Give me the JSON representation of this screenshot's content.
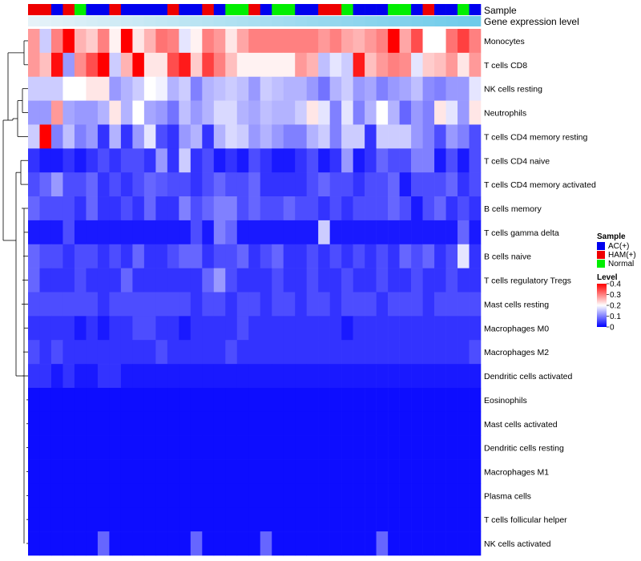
{
  "chart_data": {
    "type": "heatmap",
    "title": "",
    "annotation_labels": [
      "Sample",
      "Gene expression level"
    ],
    "gene_expression_colors": [
      "#e6f2f8",
      "#6ecbea"
    ],
    "sample_groups": [
      "AC(+)",
      "HAM(+)",
      "Normal"
    ],
    "sample_group_colors": {
      "AC(+)": "#0000ee",
      "HAM(+)": "#ee0000",
      "Normal": "#00ee00"
    },
    "samples": [
      "HAM(+)",
      "HAM(+)",
      "AC(+)",
      "HAM(+)",
      "Normal",
      "AC(+)",
      "AC(+)",
      "HAM(+)",
      "AC(+)",
      "AC(+)",
      "AC(+)",
      "AC(+)",
      "HAM(+)",
      "AC(+)",
      "AC(+)",
      "HAM(+)",
      "AC(+)",
      "Normal",
      "Normal",
      "HAM(+)",
      "AC(+)",
      "Normal",
      "Normal",
      "AC(+)",
      "AC(+)",
      "HAM(+)",
      "HAM(+)",
      "Normal",
      "AC(+)",
      "AC(+)",
      "AC(+)",
      "Normal",
      "Normal",
      "AC(+)",
      "HAM(+)",
      "AC(+)",
      "AC(+)",
      "Normal",
      "AC(+)"
    ],
    "rows": [
      "Monocytes",
      "T cells CD8",
      "NK cells resting",
      "Neutrophils",
      "T cells CD4 memory resting",
      "T cells CD4 naive",
      "T cells CD4 memory activated",
      "B cells memory",
      "T cells gamma delta",
      "B cells naive",
      "T cells regulatory  Tregs",
      "Mast cells resting",
      "Macrophages M0",
      "Macrophages M2",
      "Dendritic cells activated",
      "Eosinophils",
      "Mast cells activated",
      "Dendritic cells resting",
      "Macrophages M1",
      "Plasma cells",
      "T cells follicular helper",
      "NK cells activated"
    ],
    "legend_sample_title": "Sample",
    "legend_level_title": "Level",
    "level_ticks": [
      "0.4",
      "0.3",
      "0.2",
      "0.1",
      "0"
    ],
    "level_range": [
      0,
      0.4
    ],
    "level_colors": {
      "low": "#0000ff",
      "mid": "#ffffff",
      "high": "#ff0000"
    },
    "values": [
      [
        0.28,
        0.16,
        0.3,
        0.4,
        0.26,
        0.24,
        0.3,
        0.21,
        0.4,
        0.22,
        0.26,
        0.31,
        0.3,
        0.18,
        0.21,
        0.3,
        0.28,
        0.22,
        0.27,
        0.3,
        0.3,
        0.3,
        0.3,
        0.3,
        0.3,
        0.28,
        0.3,
        0.27,
        0.26,
        0.28,
        0.3,
        0.4,
        0.27,
        0.34,
        0.2,
        0.2,
        0.31,
        0.35,
        0.3
      ],
      [
        0.28,
        0.25,
        0.39,
        0.12,
        0.29,
        0.34,
        0.4,
        0.16,
        0.26,
        0.4,
        0.22,
        0.22,
        0.34,
        0.38,
        0.24,
        0.35,
        0.3,
        0.25,
        0.21,
        0.21,
        0.21,
        0.21,
        0.21,
        0.28,
        0.26,
        0.15,
        0.18,
        0.16,
        0.38,
        0.25,
        0.28,
        0.3,
        0.29,
        0.18,
        0.24,
        0.25,
        0.28,
        0.22,
        0.28
      ],
      [
        0.16,
        0.16,
        0.16,
        0.2,
        0.2,
        0.22,
        0.22,
        0.12,
        0.14,
        0.16,
        0.2,
        0.19,
        0.14,
        0.16,
        0.1,
        0.14,
        0.15,
        0.16,
        0.15,
        0.12,
        0.16,
        0.15,
        0.14,
        0.14,
        0.12,
        0.09,
        0.14,
        0.16,
        0.12,
        0.13,
        0.1,
        0.12,
        0.13,
        0.15,
        0.11,
        0.1,
        0.12,
        0.12,
        0.18
      ],
      [
        0.12,
        0.12,
        0.28,
        0.13,
        0.12,
        0.12,
        0.14,
        0.22,
        0.14,
        0.2,
        0.13,
        0.12,
        0.09,
        0.15,
        0.12,
        0.14,
        0.17,
        0.17,
        0.14,
        0.13,
        0.15,
        0.14,
        0.14,
        0.16,
        0.22,
        0.18,
        0.1,
        0.18,
        0.1,
        0.14,
        0.2,
        0.14,
        0.08,
        0.12,
        0.1,
        0.22,
        0.18,
        0.12,
        0.22
      ],
      [
        0.16,
        0.4,
        0.1,
        0.15,
        0.1,
        0.12,
        0.04,
        0.14,
        0.04,
        0.12,
        0.18,
        0.06,
        0.04,
        0.12,
        0.14,
        0.04,
        0.14,
        0.17,
        0.16,
        0.12,
        0.14,
        0.12,
        0.1,
        0.1,
        0.14,
        0.16,
        0.1,
        0.16,
        0.16,
        0.04,
        0.16,
        0.16,
        0.16,
        0.12,
        0.1,
        0.06,
        0.12,
        0.1,
        0.06
      ],
      [
        0.04,
        0.02,
        0.02,
        0.04,
        0.02,
        0.04,
        0.06,
        0.04,
        0.06,
        0.06,
        0.04,
        0.12,
        0.04,
        0.16,
        0.04,
        0.06,
        0.02,
        0.04,
        0.02,
        0.06,
        0.04,
        0.02,
        0.02,
        0.04,
        0.06,
        0.02,
        0.04,
        0.12,
        0.02,
        0.04,
        0.08,
        0.06,
        0.06,
        0.1,
        0.1,
        0.02,
        0.06,
        0.02,
        0.06
      ],
      [
        0.06,
        0.08,
        0.12,
        0.06,
        0.06,
        0.08,
        0.04,
        0.06,
        0.04,
        0.06,
        0.08,
        0.07,
        0.06,
        0.06,
        0.04,
        0.06,
        0.08,
        0.06,
        0.06,
        0.08,
        0.04,
        0.04,
        0.04,
        0.04,
        0.06,
        0.08,
        0.06,
        0.06,
        0.04,
        0.06,
        0.06,
        0.08,
        0.02,
        0.06,
        0.06,
        0.06,
        0.08,
        0.04,
        0.06
      ],
      [
        0.08,
        0.06,
        0.06,
        0.06,
        0.04,
        0.08,
        0.04,
        0.04,
        0.06,
        0.04,
        0.08,
        0.04,
        0.04,
        0.1,
        0.06,
        0.08,
        0.1,
        0.1,
        0.06,
        0.08,
        0.06,
        0.06,
        0.08,
        0.06,
        0.06,
        0.04,
        0.06,
        0.04,
        0.06,
        0.06,
        0.06,
        0.08,
        0.06,
        0.02,
        0.06,
        0.08,
        0.04,
        0.06,
        0.04
      ],
      [
        0.02,
        0.02,
        0.02,
        0.06,
        0.02,
        0.02,
        0.02,
        0.02,
        0.02,
        0.02,
        0.02,
        0.02,
        0.02,
        0.02,
        0.06,
        0.02,
        0.1,
        0.08,
        0.02,
        0.02,
        0.02,
        0.02,
        0.02,
        0.02,
        0.02,
        0.16,
        0.02,
        0.02,
        0.02,
        0.02,
        0.02,
        0.02,
        0.02,
        0.02,
        0.02,
        0.02,
        0.02,
        0.08,
        0.02
      ],
      [
        0.08,
        0.06,
        0.06,
        0.04,
        0.06,
        0.06,
        0.04,
        0.06,
        0.04,
        0.08,
        0.04,
        0.04,
        0.06,
        0.08,
        0.08,
        0.04,
        0.06,
        0.06,
        0.08,
        0.04,
        0.06,
        0.08,
        0.04,
        0.04,
        0.06,
        0.04,
        0.06,
        0.04,
        0.06,
        0.04,
        0.06,
        0.04,
        0.08,
        0.06,
        0.08,
        0.04,
        0.06,
        0.18,
        0.04
      ],
      [
        0.08,
        0.04,
        0.04,
        0.04,
        0.06,
        0.04,
        0.04,
        0.04,
        0.08,
        0.04,
        0.04,
        0.04,
        0.04,
        0.04,
        0.04,
        0.08,
        0.12,
        0.06,
        0.04,
        0.04,
        0.04,
        0.06,
        0.04,
        0.04,
        0.06,
        0.04,
        0.04,
        0.06,
        0.04,
        0.04,
        0.06,
        0.04,
        0.04,
        0.06,
        0.04,
        0.04,
        0.06,
        0.04,
        0.04
      ],
      [
        0.06,
        0.06,
        0.06,
        0.06,
        0.06,
        0.06,
        0.04,
        0.06,
        0.06,
        0.06,
        0.06,
        0.06,
        0.06,
        0.06,
        0.04,
        0.06,
        0.06,
        0.04,
        0.06,
        0.06,
        0.04,
        0.06,
        0.06,
        0.04,
        0.06,
        0.06,
        0.04,
        0.06,
        0.06,
        0.06,
        0.04,
        0.06,
        0.06,
        0.06,
        0.04,
        0.06,
        0.06,
        0.06,
        0.06
      ],
      [
        0.04,
        0.04,
        0.04,
        0.04,
        0.02,
        0.04,
        0.02,
        0.04,
        0.04,
        0.06,
        0.06,
        0.04,
        0.04,
        0.02,
        0.04,
        0.04,
        0.04,
        0.04,
        0.06,
        0.04,
        0.04,
        0.04,
        0.04,
        0.04,
        0.04,
        0.04,
        0.04,
        0.02,
        0.04,
        0.04,
        0.04,
        0.04,
        0.04,
        0.04,
        0.04,
        0.04,
        0.04,
        0.04,
        0.04
      ],
      [
        0.06,
        0.04,
        0.06,
        0.04,
        0.04,
        0.04,
        0.04,
        0.04,
        0.04,
        0.04,
        0.04,
        0.06,
        0.04,
        0.04,
        0.04,
        0.04,
        0.04,
        0.06,
        0.04,
        0.04,
        0.04,
        0.04,
        0.04,
        0.04,
        0.04,
        0.04,
        0.04,
        0.04,
        0.04,
        0.04,
        0.04,
        0.04,
        0.04,
        0.04,
        0.04,
        0.04,
        0.04,
        0.04,
        0.06
      ],
      [
        0.04,
        0.04,
        0.02,
        0.04,
        0.02,
        0.02,
        0.04,
        0.04,
        0.02,
        0.02,
        0.02,
        0.02,
        0.02,
        0.02,
        0.02,
        0.02,
        0.02,
        0.02,
        0.02,
        0.02,
        0.02,
        0.02,
        0.02,
        0.02,
        0.02,
        0.02,
        0.02,
        0.02,
        0.02,
        0.02,
        0.02,
        0.02,
        0.02,
        0.02,
        0.02,
        0.02,
        0.02,
        0.02,
        0.02
      ],
      [
        0.01,
        0.01,
        0.01,
        0.01,
        0.01,
        0.01,
        0.01,
        0.01,
        0.01,
        0.01,
        0.01,
        0.01,
        0.01,
        0.01,
        0.01,
        0.01,
        0.01,
        0.01,
        0.01,
        0.01,
        0.01,
        0.01,
        0.01,
        0.01,
        0.01,
        0.01,
        0.01,
        0.01,
        0.01,
        0.01,
        0.01,
        0.01,
        0.01,
        0.01,
        0.01,
        0.01,
        0.01,
        0.01,
        0.01
      ],
      [
        0.01,
        0.01,
        0.01,
        0.01,
        0.01,
        0.01,
        0.01,
        0.01,
        0.01,
        0.01,
        0.01,
        0.01,
        0.01,
        0.01,
        0.01,
        0.01,
        0.01,
        0.01,
        0.01,
        0.01,
        0.01,
        0.01,
        0.01,
        0.01,
        0.01,
        0.01,
        0.01,
        0.01,
        0.01,
        0.01,
        0.01,
        0.01,
        0.01,
        0.01,
        0.01,
        0.01,
        0.01,
        0.01,
        0.01
      ],
      [
        0.01,
        0.01,
        0.01,
        0.01,
        0.01,
        0.01,
        0.01,
        0.01,
        0.01,
        0.01,
        0.01,
        0.01,
        0.01,
        0.01,
        0.01,
        0.01,
        0.01,
        0.01,
        0.01,
        0.01,
        0.01,
        0.01,
        0.01,
        0.01,
        0.01,
        0.01,
        0.01,
        0.01,
        0.01,
        0.01,
        0.01,
        0.01,
        0.01,
        0.01,
        0.01,
        0.01,
        0.01,
        0.01,
        0.01
      ],
      [
        0.01,
        0.01,
        0.01,
        0.01,
        0.01,
        0.01,
        0.01,
        0.01,
        0.01,
        0.01,
        0.01,
        0.01,
        0.01,
        0.01,
        0.01,
        0.01,
        0.01,
        0.01,
        0.01,
        0.01,
        0.01,
        0.01,
        0.01,
        0.01,
        0.01,
        0.01,
        0.01,
        0.01,
        0.01,
        0.01,
        0.01,
        0.01,
        0.01,
        0.01,
        0.01,
        0.01,
        0.01,
        0.01,
        0.01
      ],
      [
        0.01,
        0.01,
        0.01,
        0.01,
        0.01,
        0.01,
        0.01,
        0.01,
        0.01,
        0.01,
        0.01,
        0.01,
        0.01,
        0.01,
        0.01,
        0.01,
        0.01,
        0.01,
        0.01,
        0.01,
        0.01,
        0.01,
        0.01,
        0.01,
        0.01,
        0.01,
        0.01,
        0.01,
        0.01,
        0.01,
        0.01,
        0.01,
        0.01,
        0.01,
        0.01,
        0.01,
        0.01,
        0.01,
        0.01
      ],
      [
        0.01,
        0.01,
        0.01,
        0.01,
        0.01,
        0.01,
        0.01,
        0.01,
        0.01,
        0.01,
        0.01,
        0.01,
        0.01,
        0.01,
        0.01,
        0.01,
        0.01,
        0.01,
        0.01,
        0.01,
        0.01,
        0.01,
        0.01,
        0.01,
        0.01,
        0.01,
        0.01,
        0.01,
        0.01,
        0.01,
        0.01,
        0.01,
        0.01,
        0.01,
        0.01,
        0.01,
        0.01,
        0.01,
        0.01
      ],
      [
        0.01,
        0.01,
        0.01,
        0.01,
        0.01,
        0.01,
        0.08,
        0.01,
        0.01,
        0.01,
        0.01,
        0.01,
        0.01,
        0.01,
        0.08,
        0.01,
        0.01,
        0.01,
        0.01,
        0.01,
        0.08,
        0.01,
        0.01,
        0.01,
        0.01,
        0.01,
        0.01,
        0.01,
        0.01,
        0.01,
        0.08,
        0.01,
        0.01,
        0.01,
        0.01,
        0.01,
        0.01,
        0.01,
        0.01
      ]
    ]
  }
}
